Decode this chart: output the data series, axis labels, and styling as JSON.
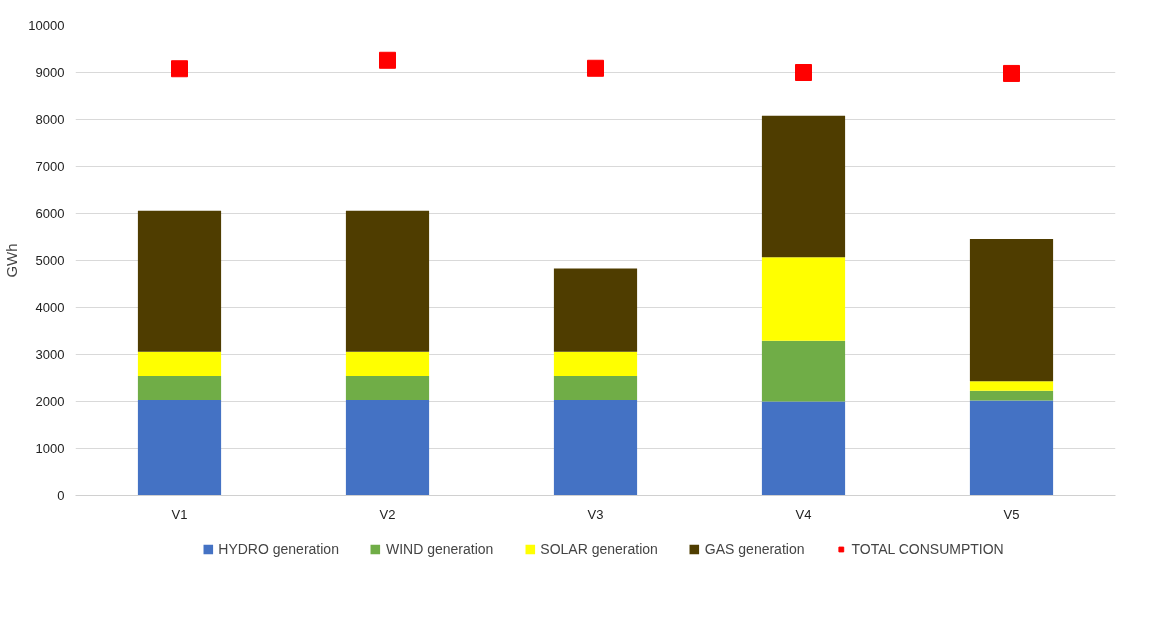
{
  "chart_data": {
    "type": "bar",
    "stacked": true,
    "ylabel": "GWh",
    "categories": [
      "V1",
      "V2",
      "V3",
      "V4",
      "V5"
    ],
    "series": [
      {
        "name": "HYDRO generation",
        "color": "#4472c4",
        "values": [
          2030,
          2030,
          2030,
          2000,
          2020
        ]
      },
      {
        "name": "WIND generation",
        "color": "#70ad47",
        "values": [
          510,
          510,
          510,
          1290,
          210
        ]
      },
      {
        "name": "SOLAR generation",
        "color": "#ffff00",
        "values": [
          520,
          520,
          520,
          1780,
          200
        ]
      },
      {
        "name": "GAS generation",
        "color": "#4f3d00",
        "values": [
          3000,
          3000,
          1770,
          3010,
          3030
        ]
      },
      {
        "name": "TOTAL CONSUMPTION",
        "color": "#ff0000",
        "type": "scatter",
        "marker": "square",
        "values": [
          9080,
          9260,
          9090,
          9000,
          8980
        ]
      }
    ],
    "ylim": [
      0,
      10000
    ],
    "yticks": [
      0,
      1000,
      2000,
      3000,
      4000,
      5000,
      6000,
      7000,
      8000,
      9000,
      10000
    ],
    "grid": "y",
    "legend": "bottom"
  }
}
